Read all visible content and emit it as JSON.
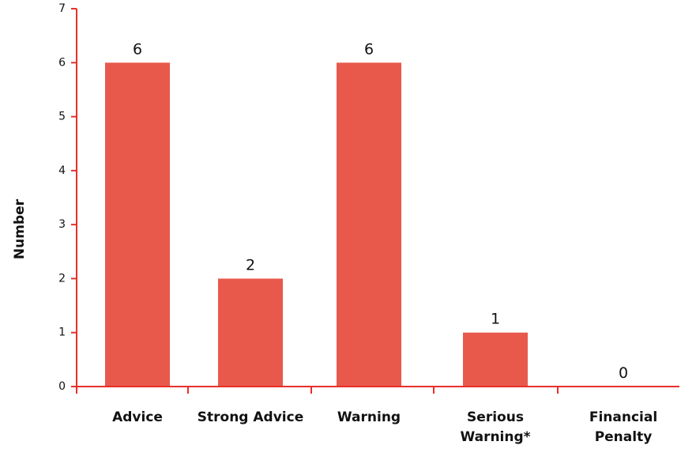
{
  "chart_data": {
    "type": "bar",
    "categories": [
      "Advice",
      "Strong Advice",
      "Warning",
      "Serious Warning*",
      "Financial Penalty"
    ],
    "category_lines": [
      [
        "Advice"
      ],
      [
        "Strong Advice"
      ],
      [
        "Warning"
      ],
      [
        "Serious",
        "Warning*"
      ],
      [
        "Financial",
        "Penalty"
      ]
    ],
    "values": [
      6,
      2,
      6,
      1,
      0
    ],
    "data_labels": [
      "6",
      "2",
      "6",
      "1",
      "0"
    ],
    "ylabel": "Number",
    "xlabel": "",
    "ylim": [
      0,
      7
    ],
    "yticks": [
      0,
      1,
      2,
      3,
      4,
      5,
      6,
      7
    ],
    "grid": false,
    "colors": {
      "bar": "#E8594C",
      "axis": "#E8302A"
    }
  }
}
